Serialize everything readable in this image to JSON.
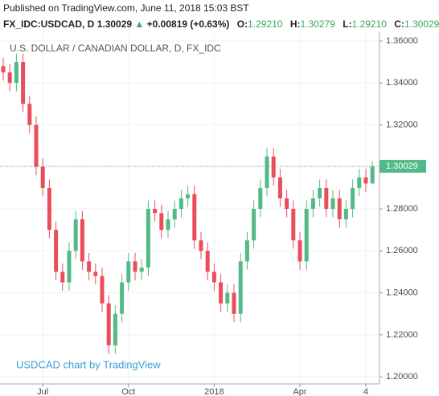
{
  "header": {
    "published": "Published on TradingView.com, June 11, 2018 15:03 BST",
    "symbol": "FX_IDC:USDCAD, D",
    "last": "1.30029",
    "arrow": "▲",
    "change": "+0.00819 (+0.63%)",
    "open_label": "O:",
    "open": "1.29210",
    "high_label": "H:",
    "high": "1.30279",
    "low_label": "L:",
    "low": "1.29210",
    "close_label": "C:",
    "close": "1.30029"
  },
  "chart_data": {
    "type": "candlestick",
    "title": "U.S. DOLLAR / CANADIAN DOLLAR, D, FX_IDC",
    "watermark": "USDCAD chart by TradingView",
    "categories": [
      null,
      null,
      null,
      null,
      null,
      null,
      "Jul",
      null,
      null,
      null,
      null,
      null,
      null,
      null,
      null,
      null,
      null,
      null,
      null,
      "Oct",
      null,
      null,
      null,
      null,
      null,
      null,
      null,
      null,
      null,
      null,
      null,
      null,
      "2018",
      null,
      null,
      null,
      null,
      null,
      null,
      null,
      null,
      null,
      null,
      null,
      null,
      "Apr",
      null,
      null,
      null,
      null,
      null,
      null,
      null,
      null,
      null,
      "4",
      null
    ],
    "open": [
      1.348,
      1.345,
      1.34,
      1.35,
      1.33,
      1.32,
      1.3,
      1.29,
      1.27,
      1.25,
      1.245,
      1.26,
      1.275,
      1.255,
      1.25,
      1.248,
      1.235,
      1.215,
      1.23,
      1.245,
      1.255,
      1.25,
      1.252,
      1.28,
      1.278,
      1.27,
      1.275,
      1.28,
      1.285,
      1.287,
      1.265,
      1.26,
      1.25,
      1.245,
      1.235,
      1.24,
      1.23,
      1.255,
      1.265,
      1.28,
      1.29,
      1.305,
      1.295,
      1.285,
      1.28,
      1.265,
      1.255,
      1.28,
      1.285,
      1.29,
      1.28,
      1.285,
      1.275,
      1.28,
      1.29,
      1.295,
      1.2921
    ],
    "high": [
      1.352,
      1.349,
      1.354,
      1.354,
      1.334,
      1.324,
      1.304,
      1.294,
      1.274,
      1.254,
      1.264,
      1.279,
      1.279,
      1.259,
      1.254,
      1.252,
      1.239,
      1.234,
      1.249,
      1.259,
      1.259,
      1.256,
      1.284,
      1.284,
      1.282,
      1.279,
      1.284,
      1.289,
      1.291,
      1.291,
      1.269,
      1.264,
      1.254,
      1.249,
      1.244,
      1.244,
      1.259,
      1.269,
      1.284,
      1.294,
      1.309,
      1.309,
      1.299,
      1.289,
      1.284,
      1.269,
      1.284,
      1.289,
      1.294,
      1.294,
      1.289,
      1.289,
      1.284,
      1.294,
      1.299,
      1.299,
      1.30279
    ],
    "low": [
      1.341,
      1.336,
      1.336,
      1.326,
      1.316,
      1.296,
      1.286,
      1.266,
      1.246,
      1.241,
      1.241,
      1.256,
      1.251,
      1.246,
      1.244,
      1.231,
      1.211,
      1.211,
      1.226,
      1.241,
      1.246,
      1.246,
      1.248,
      1.274,
      1.266,
      1.266,
      1.271,
      1.276,
      1.281,
      1.261,
      1.256,
      1.246,
      1.241,
      1.231,
      1.231,
      1.226,
      1.226,
      1.251,
      1.261,
      1.276,
      1.286,
      1.291,
      1.281,
      1.276,
      1.261,
      1.251,
      1.251,
      1.276,
      1.281,
      1.276,
      1.276,
      1.271,
      1.271,
      1.276,
      1.286,
      1.288,
      1.2921
    ],
    "close": [
      1.345,
      1.34,
      1.35,
      1.33,
      1.32,
      1.3,
      1.29,
      1.27,
      1.25,
      1.245,
      1.26,
      1.275,
      1.255,
      1.25,
      1.248,
      1.235,
      1.215,
      1.23,
      1.245,
      1.255,
      1.25,
      1.252,
      1.28,
      1.278,
      1.27,
      1.275,
      1.28,
      1.285,
      1.287,
      1.265,
      1.26,
      1.25,
      1.245,
      1.235,
      1.24,
      1.23,
      1.255,
      1.265,
      1.28,
      1.29,
      1.305,
      1.295,
      1.285,
      1.28,
      1.265,
      1.255,
      1.28,
      1.285,
      1.29,
      1.28,
      1.285,
      1.275,
      1.28,
      1.29,
      1.295,
      1.2921,
      1.30029
    ],
    "up_color": "#53b987",
    "down_color": "#eb4d5c",
    "last_value": 1.30029,
    "ylim": [
      1.1966,
      1.3642
    ],
    "yticks": [
      {
        "value": 1.2,
        "label": "1.20000"
      },
      {
        "value": 1.22,
        "label": "1.22000"
      },
      {
        "value": 1.24,
        "label": "1.24000"
      },
      {
        "value": 1.26,
        "label": "1.26000"
      },
      {
        "value": 1.28,
        "label": "1.28000"
      },
      {
        "value": 1.3,
        "label": "1.30000"
      },
      {
        "value": 1.32,
        "label": "1.32000"
      },
      {
        "value": 1.34,
        "label": "1.34000"
      },
      {
        "value": 1.36,
        "label": "1.36000"
      }
    ],
    "grid": true
  }
}
